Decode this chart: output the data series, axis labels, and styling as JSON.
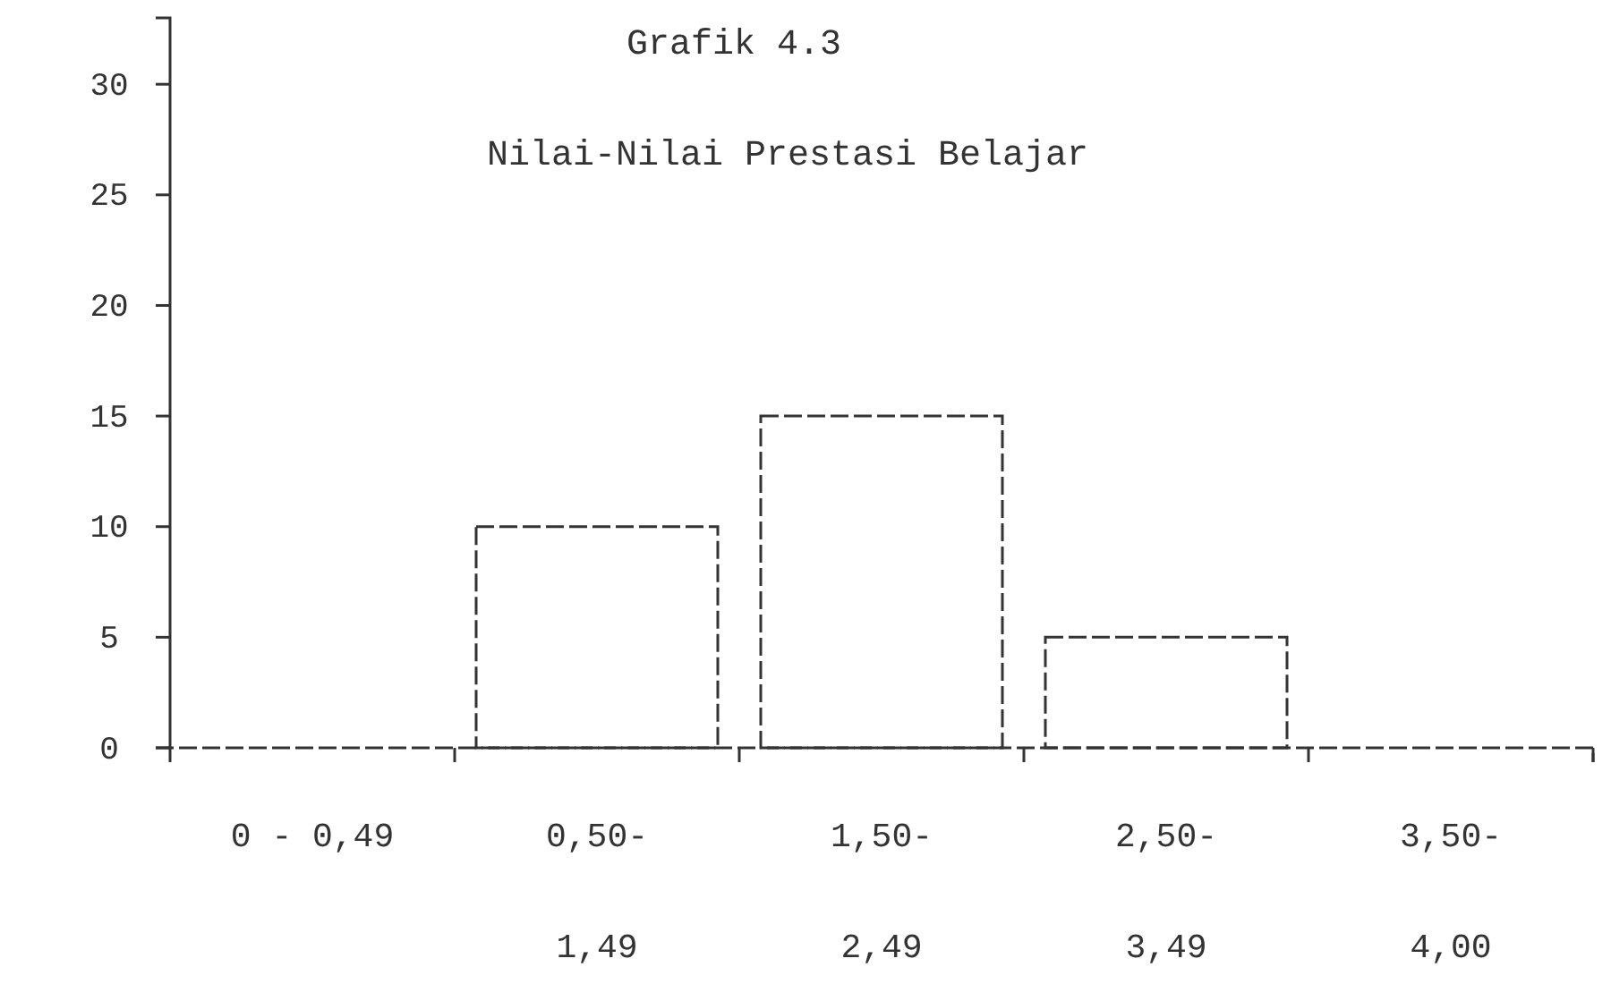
{
  "chart_data": {
    "type": "bar",
    "title": "Grafik 4.3",
    "subtitle": "Nilai-Nilai Prestasi Belajar",
    "categories": [
      "0 - 0,49",
      "0,50-\n1,49",
      "1,50-\n2,49",
      "2,50-\n3,49",
      "3,50-\n4,00"
    ],
    "values": [
      0,
      10,
      15,
      5,
      0
    ],
    "color": "#333333",
    "ylim": [
      0,
      33
    ],
    "yticks": [
      0,
      5,
      10,
      15,
      20,
      25,
      30
    ],
    "grid": false,
    "line_style": "dashed"
  }
}
